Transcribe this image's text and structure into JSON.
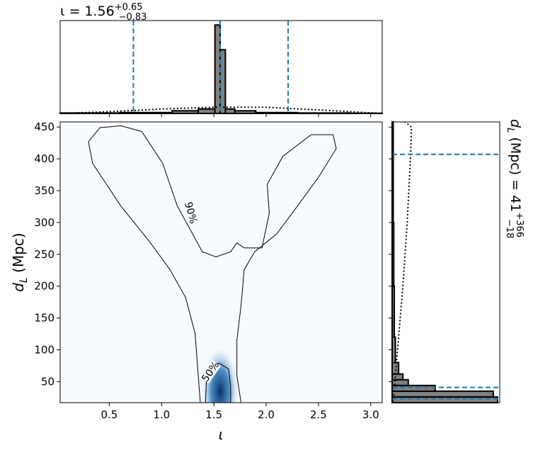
{
  "chart_data": {
    "type": "corner",
    "title": [
      "ι = 1.56",
      "+0.65",
      "−0.83"
    ],
    "right_title": [
      "d",
      "L",
      " (Mpc) = 41",
      "+366",
      "−18"
    ],
    "xlabel": "ι",
    "ylabel": [
      "d",
      "L",
      " (Mpc)"
    ],
    "xlim": [
      0.03,
      3.11
    ],
    "ylim": [
      17,
      458
    ],
    "xticks": [
      0.5,
      {
        "value": 1,
        "label": "1.0"
      },
      1.5,
      {
        "value": 2,
        "label": "2.0"
      },
      2.5,
      {
        "value": 3,
        "label": "3.0"
      }
    ],
    "yticks": [
      50,
      100,
      150,
      200,
      250,
      300,
      350,
      400,
      450
    ],
    "density_peak": [
      1.56,
      35
    ],
    "density_color": "#08306b",
    "contours": [
      {
        "label": "90%",
        "x": [
          1.37,
          1.32,
          1.23,
          1.08,
          0.88,
          0.61,
          0.34,
          0.3,
          0.41,
          0.61,
          0.81,
          1.01,
          1.15,
          1.39,
          1.52,
          1.66,
          1.72,
          1.79,
          1.96,
          2.03,
          2.01,
          2.16,
          2.43,
          2.64,
          2.67,
          2.5,
          2.3,
          2.1,
          1.89,
          1.79,
          1.76,
          1.72,
          1.72,
          1.76
        ],
        "y": [
          17,
          126,
          182,
          226,
          271,
          326,
          393,
          427,
          449,
          452,
          443,
          393,
          326,
          254,
          246,
          254,
          268,
          260,
          260,
          315,
          360,
          404,
          438,
          438,
          416,
          371,
          326,
          282,
          254,
          226,
          170,
          115,
          59,
          17
        ]
      },
      {
        "label": "50%",
        "x": [
          1.42,
          1.43,
          1.49,
          1.55,
          1.64,
          1.66,
          1.66
        ],
        "y": [
          17,
          59,
          76,
          79,
          70,
          43,
          17
        ]
      }
    ],
    "top_hist": {
      "bins": [
        0.03,
        0.6,
        1.1,
        1.35,
        1.51,
        1.56,
        1.61,
        1.7,
        1.9,
        2.3,
        2.8,
        3.11
      ],
      "counts": [
        0.005,
        0.01,
        0.03,
        0.05,
        1.0,
        0.72,
        0.05,
        0.03,
        0.01,
        0.005,
        0.002
      ],
      "ylim": [
        0,
        1.05
      ],
      "prior_x": [
        0.03,
        0.5,
        1.0,
        1.5,
        2.0,
        2.5,
        3.11
      ],
      "prior_y": [
        0.0,
        0.02,
        0.05,
        0.07,
        0.07,
        0.04,
        0.0
      ],
      "quantiles": [
        0.73,
        1.56,
        2.21
      ]
    },
    "right_hist": {
      "bins": [
        17,
        26,
        35,
        44,
        53,
        62,
        80,
        120,
        200,
        300,
        458
      ],
      "counts": [
        0.98,
        0.94,
        0.4,
        0.15,
        0.1,
        0.06,
        0.03,
        0.02,
        0.015,
        0.01
      ],
      "xlim": [
        0,
        1
      ],
      "prior_y": [
        17,
        100,
        200,
        300,
        400,
        450,
        458
      ],
      "prior_x": [
        0.01,
        0.05,
        0.1,
        0.14,
        0.17,
        0.18,
        0.12
      ],
      "quantiles": [
        23,
        41,
        407
      ]
    },
    "hist_color": "#808080",
    "quantile_color": "#1f77b4"
  }
}
